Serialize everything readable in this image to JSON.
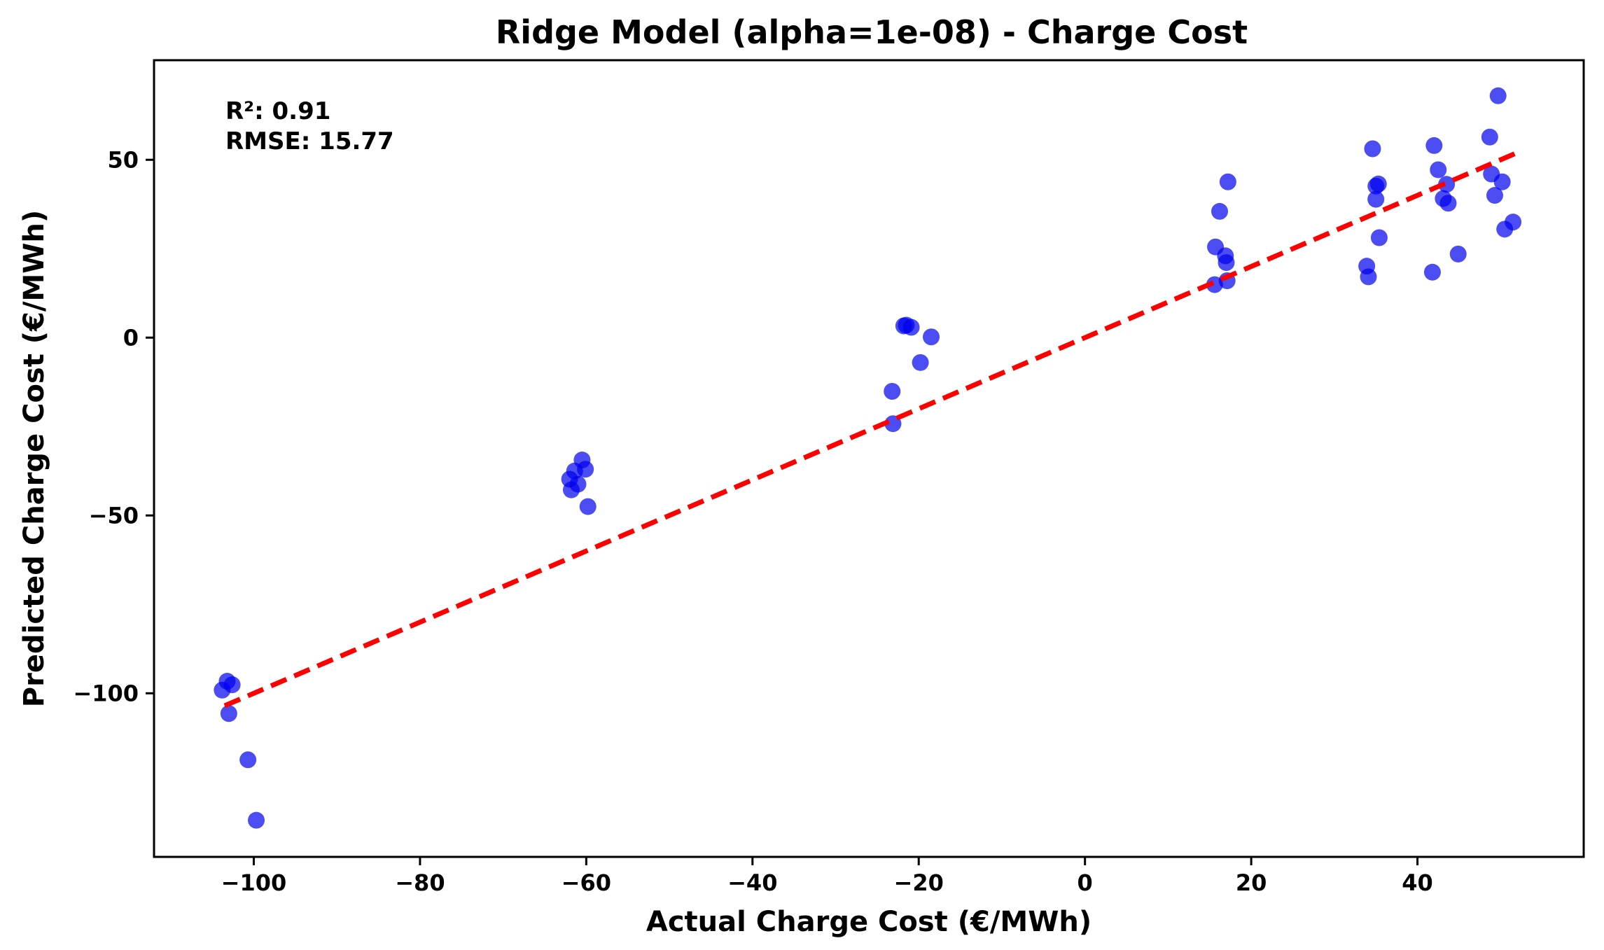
{
  "chart_data": {
    "type": "scatter",
    "title": "Ridge Model (alpha=1e-08) - Charge Cost",
    "xlabel": "Actual Charge Cost (€/MWh)",
    "ylabel": "Predicted Charge Cost (€/MWh)",
    "xlim": [
      -112,
      60
    ],
    "ylim": [
      -146,
      78
    ],
    "xticks": [
      -100,
      -80,
      -60,
      -40,
      -20,
      0,
      20,
      40
    ],
    "xtick_labels": [
      "−100",
      "−80",
      "−60",
      "−40",
      "−20",
      "0",
      "20",
      "40"
    ],
    "yticks": [
      -100,
      -50,
      0,
      50
    ],
    "ytick_labels": [
      "−100",
      "−50",
      "0",
      "50"
    ],
    "annotations": [
      "R²: 0.91",
      "RMSE: 15.77"
    ],
    "point_color": "#0000ee",
    "point_opacity": 0.7,
    "fit_line": {
      "x": [
        -103.5,
        52
      ],
      "y": [
        -103.5,
        52
      ],
      "color": "#ff0000",
      "style": "dashed"
    },
    "points": {
      "x": [
        -103.8,
        -103.2,
        -102.6,
        -103.0,
        -100.7,
        -99.7,
        -62.0,
        -61.8,
        -61.4,
        -61.0,
        -60.5,
        -59.8,
        -60.1,
        -23.2,
        -23.1,
        -21.8,
        -21.5,
        -20.9,
        -19.8,
        -18.5,
        15.6,
        15.7,
        16.2,
        16.9,
        17.0,
        17.2,
        17.1,
        33.9,
        34.1,
        34.6,
        35.0,
        35.0,
        35.3,
        35.4,
        41.8,
        42.0,
        42.5,
        43.1,
        43.5,
        43.7,
        44.9,
        48.7,
        48.9,
        49.3,
        49.7,
        50.2,
        50.5,
        51.5
      ],
      "y": [
        -99.1,
        -96.6,
        -97.6,
        -105.7,
        -118.7,
        -135.7,
        -39.8,
        -42.8,
        -37.5,
        -41.2,
        -34.4,
        -47.5,
        -37.0,
        -15.1,
        -24.2,
        3.3,
        3.5,
        2.9,
        -7.0,
        0.2,
        14.9,
        25.5,
        35.5,
        23.0,
        21.1,
        43.8,
        16.0,
        20.1,
        17.1,
        53.1,
        42.6,
        38.9,
        43.2,
        28.1,
        18.4,
        54.0,
        47.2,
        39.1,
        43.1,
        37.8,
        23.5,
        56.4,
        46.0,
        40.0,
        68.0,
        43.8,
        30.5,
        32.5
      ]
    }
  }
}
